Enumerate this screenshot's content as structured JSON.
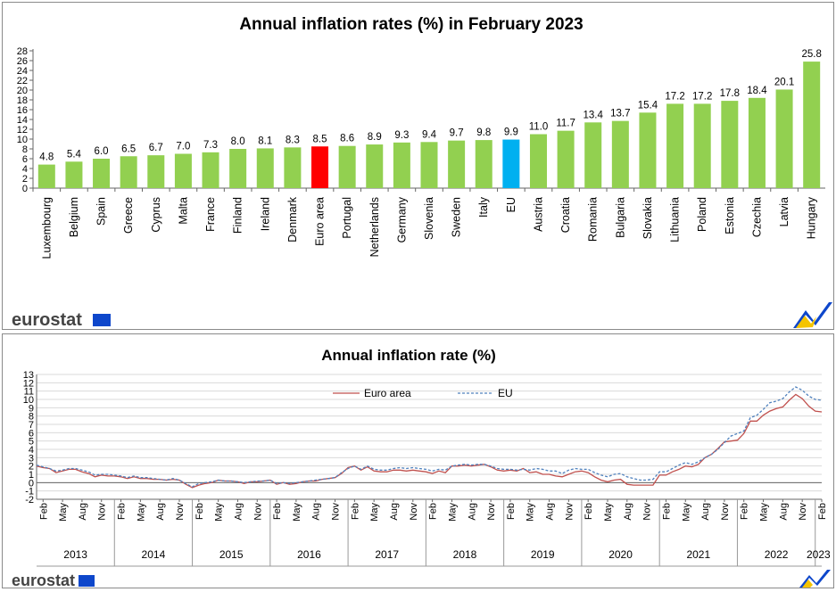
{
  "logo_text": "eurostat",
  "chart_data": [
    {
      "type": "bar",
      "title": "Annual inflation rates (%) in February 2023",
      "categories": [
        "Luxembourg",
        "Belgium",
        "Spain",
        "Greece",
        "Cyprus",
        "Malta",
        "France",
        "Finland",
        "Ireland",
        "Denmark",
        "Euro area",
        "Portugal",
        "Netherlands",
        "Germany",
        "Slovenia",
        "Sweden",
        "Italy",
        "EU",
        "Austria",
        "Croatia",
        "Romania",
        "Bulgaria",
        "Slovakia",
        "Lithuania",
        "Poland",
        "Estonia",
        "Czechia",
        "Latvia",
        "Hungary"
      ],
      "values": [
        4.8,
        5.4,
        6.0,
        6.5,
        6.7,
        7.0,
        7.3,
        8.0,
        8.1,
        8.3,
        8.5,
        8.6,
        8.9,
        9.3,
        9.4,
        9.7,
        9.8,
        9.9,
        11.0,
        11.7,
        13.4,
        13.7,
        15.4,
        17.2,
        17.2,
        17.8,
        18.4,
        20.1,
        25.8
      ],
      "value_labels": [
        "4.8",
        "5.4",
        "6.0",
        "6.5",
        "6.7",
        "7.0",
        "7.3",
        "8.0",
        "8.1",
        "8.3",
        "8.5",
        "8.6",
        "8.9",
        "9.3",
        "9.4",
        "9.7",
        "9.8",
        "9.9",
        "11.0",
        "11.7",
        "13.4",
        "13.7",
        "15.4",
        "17.2",
        "17.2",
        "17.8",
        "18.4",
        "20.1",
        "25.8"
      ],
      "yticks": [
        "0",
        "2",
        "4",
        "6",
        "8",
        "10",
        "12",
        "14",
        "16",
        "18",
        "20",
        "22",
        "24",
        "26",
        "28"
      ],
      "ylim": [
        0,
        28
      ],
      "colors": {
        "default": "#92d050",
        "Euro area": "#ff0000",
        "EU": "#00b0f0"
      }
    },
    {
      "type": "line",
      "title": "Annual inflation rate (%)",
      "months": [
        "Feb",
        "May",
        "Aug",
        "Nov"
      ],
      "month_labels_2023": [
        "Feb"
      ],
      "years": [
        "2013",
        "2014",
        "2015",
        "2016",
        "2017",
        "2018",
        "2019",
        "2020",
        "2021",
        "2022",
        "2023"
      ],
      "yticks": [
        "-2",
        "-1",
        "0",
        "1",
        "2",
        "3",
        "4",
        "5",
        "6",
        "7",
        "8",
        "9",
        "10",
        "11",
        "12",
        "13"
      ],
      "ylim": [
        -2,
        13
      ],
      "x_start": "2013-01",
      "x_end": "2023-02",
      "series": [
        {
          "name": "Euro area",
          "color": "#c0504d",
          "dash": "solid",
          "values": [
            2.0,
            1.8,
            1.7,
            1.2,
            1.4,
            1.6,
            1.6,
            1.3,
            1.1,
            0.7,
            0.9,
            0.8,
            0.8,
            0.7,
            0.5,
            0.7,
            0.5,
            0.5,
            0.4,
            0.4,
            0.3,
            0.4,
            0.3,
            -0.2,
            -0.6,
            -0.3,
            -0.1,
            0.0,
            0.3,
            0.2,
            0.2,
            0.1,
            -0.1,
            0.1,
            0.1,
            0.2,
            0.3,
            -0.2,
            0.0,
            -0.2,
            -0.1,
            0.1,
            0.2,
            0.2,
            0.4,
            0.5,
            0.6,
            1.1,
            1.8,
            2.0,
            1.5,
            1.9,
            1.4,
            1.3,
            1.3,
            1.5,
            1.5,
            1.4,
            1.5,
            1.4,
            1.3,
            1.1,
            1.4,
            1.2,
            2.0,
            2.0,
            2.1,
            2.0,
            2.1,
            2.2,
            1.9,
            1.5,
            1.4,
            1.5,
            1.4,
            1.7,
            1.2,
            1.3,
            1.0,
            1.0,
            0.8,
            0.7,
            1.0,
            1.3,
            1.4,
            1.2,
            0.7,
            0.3,
            0.1,
            0.3,
            0.4,
            -0.2,
            -0.3,
            -0.3,
            -0.3,
            -0.3,
            0.9,
            0.9,
            1.3,
            1.6,
            2.0,
            1.9,
            2.2,
            3.0,
            3.4,
            4.1,
            4.9,
            5.0,
            5.1,
            5.9,
            7.4,
            7.4,
            8.1,
            8.6,
            8.9,
            9.1,
            9.9,
            10.6,
            10.1,
            9.2,
            8.6,
            8.5
          ]
        },
        {
          "name": "EU",
          "color": "#4f81bd",
          "dash": "dashed",
          "values": [
            2.1,
            1.9,
            1.7,
            1.4,
            1.5,
            1.7,
            1.7,
            1.5,
            1.3,
            0.9,
            1.0,
            1.0,
            0.9,
            0.8,
            0.6,
            0.8,
            0.6,
            0.6,
            0.5,
            0.4,
            0.3,
            0.5,
            0.3,
            -0.1,
            -0.5,
            -0.1,
            0.0,
            0.1,
            0.3,
            0.2,
            0.2,
            0.1,
            0.0,
            0.1,
            0.2,
            0.2,
            0.3,
            -0.1,
            0.0,
            -0.1,
            0.0,
            0.1,
            0.2,
            0.3,
            0.4,
            0.5,
            0.6,
            1.2,
            1.7,
            2.0,
            1.6,
            2.0,
            1.6,
            1.5,
            1.5,
            1.7,
            1.8,
            1.7,
            1.8,
            1.7,
            1.6,
            1.4,
            1.6,
            1.5,
            2.0,
            2.1,
            2.2,
            2.1,
            2.2,
            2.2,
            2.0,
            1.7,
            1.6,
            1.6,
            1.5,
            1.6,
            1.5,
            1.7,
            1.6,
            1.4,
            1.4,
            1.1,
            1.5,
            1.7,
            1.6,
            1.6,
            1.2,
            0.9,
            0.7,
            1.0,
            1.1,
            0.7,
            0.5,
            0.3,
            0.3,
            0.4,
            1.3,
            1.3,
            1.7,
            2.1,
            2.4,
            2.2,
            2.5,
            3.0,
            3.4,
            4.0,
            4.8,
            5.6,
            5.9,
            6.2,
            7.8,
            8.1,
            8.8,
            9.6,
            9.8,
            10.1,
            10.9,
            11.5,
            11.1,
            10.4,
            10.0,
            9.9
          ]
        }
      ]
    }
  ]
}
